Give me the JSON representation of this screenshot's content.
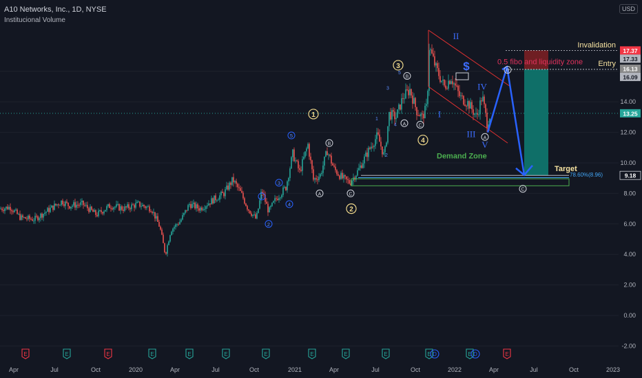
{
  "header": {
    "title": "A10 Networks, Inc., 1D, NYSE",
    "subtitle": "Institucional Volume",
    "currency": "USD"
  },
  "colors": {
    "background": "#131722",
    "up": "#26a69a",
    "down": "#ef5350",
    "wave_blue": "#2962ff",
    "wave_yellow": "#f0d98c",
    "channel_red": "#e03131",
    "demand_green": "#4caf50",
    "target_teal": "#0f6f68",
    "stop_red": "#7a1f24",
    "invalidation_box": "#f23645",
    "price_label": "#26a69a"
  },
  "chart_data": {
    "type": "candlestick",
    "y_ticks": [
      "-2.00",
      "0.00",
      "2.00",
      "4.00",
      "6.00",
      "8.00",
      "10.00",
      "12.00",
      "14.00",
      "16.00"
    ],
    "x_ticks": [
      "Apr",
      "Jul",
      "Oct",
      "2020",
      "Apr",
      "Jul",
      "Oct",
      "2021",
      "Apr",
      "Jul",
      "Oct",
      "2022",
      "Apr",
      "Jul",
      "Oct",
      "2023"
    ],
    "ylim": [
      -2.5,
      19
    ],
    "price_path": [
      {
        "t": 0,
        "p": 7.0
      },
      {
        "t": 15,
        "p": 7.1
      },
      {
        "t": 30,
        "p": 6.4
      },
      {
        "t": 50,
        "p": 6.3
      },
      {
        "t": 70,
        "p": 6.9
      },
      {
        "t": 90,
        "p": 7.5
      },
      {
        "t": 100,
        "p": 7.2
      },
      {
        "t": 120,
        "p": 7.3
      },
      {
        "t": 140,
        "p": 6.6
      },
      {
        "t": 160,
        "p": 7.2
      },
      {
        "t": 180,
        "p": 7.0
      },
      {
        "t": 200,
        "p": 7.3
      },
      {
        "t": 220,
        "p": 7.0
      },
      {
        "t": 232,
        "p": 5.8
      },
      {
        "t": 240,
        "p": 4.0
      },
      {
        "t": 248,
        "p": 5.6
      },
      {
        "t": 262,
        "p": 6.2
      },
      {
        "t": 275,
        "p": 7.3
      },
      {
        "t": 290,
        "p": 7.0
      },
      {
        "t": 310,
        "p": 7.6
      },
      {
        "t": 325,
        "p": 8.0
      },
      {
        "t": 338,
        "p": 8.9
      },
      {
        "t": 350,
        "p": 8.0
      },
      {
        "t": 360,
        "p": 7.0
      },
      {
        "t": 372,
        "p": 6.3
      },
      {
        "t": 380,
        "p": 8.2
      },
      {
        "t": 390,
        "p": 6.8
      },
      {
        "t": 400,
        "p": 7.6
      },
      {
        "t": 415,
        "p": 8.4
      },
      {
        "t": 425,
        "p": 10.6
      },
      {
        "t": 435,
        "p": 9.4
      },
      {
        "t": 447,
        "p": 11.2
      },
      {
        "t": 455,
        "p": 8.9
      },
      {
        "t": 465,
        "p": 9.2
      },
      {
        "t": 475,
        "p": 10.8
      },
      {
        "t": 485,
        "p": 9.6
      },
      {
        "t": 497,
        "p": 9.0
      },
      {
        "t": 508,
        "p": 8.7
      },
      {
        "t": 520,
        "p": 9.5
      },
      {
        "t": 535,
        "p": 10.8
      },
      {
        "t": 548,
        "p": 11.8
      },
      {
        "t": 558,
        "p": 10.4
      },
      {
        "t": 565,
        "p": 13.2
      },
      {
        "t": 575,
        "p": 13.0
      },
      {
        "t": 585,
        "p": 14.3
      },
      {
        "t": 595,
        "p": 14.8
      },
      {
        "t": 605,
        "p": 13.4
      },
      {
        "t": 613,
        "p": 13.0
      },
      {
        "t": 620,
        "p": 13.7
      },
      {
        "t": 623,
        "p": 17.6
      },
      {
        "t": 633,
        "p": 16.2
      },
      {
        "t": 645,
        "p": 15.0
      },
      {
        "t": 655,
        "p": 15.6
      },
      {
        "t": 668,
        "p": 14.3
      },
      {
        "t": 680,
        "p": 13.9
      },
      {
        "t": 692,
        "p": 13.0
      },
      {
        "t": 700,
        "p": 14.4
      },
      {
        "t": 707,
        "p": 12.6
      },
      {
        "t": 712,
        "p": 13.2
      }
    ],
    "price_levels": [
      {
        "value": 17.37,
        "label": "17.37"
      },
      {
        "value": 17.33,
        "label": "17.33"
      },
      {
        "value": 16.13,
        "label": "16.13"
      },
      {
        "value": 16.09,
        "label": "16.09"
      },
      {
        "value": 13.25,
        "label": "13.25"
      },
      {
        "value": 9.18,
        "label": "9.18"
      }
    ],
    "annotations": {
      "invalidation": "Invalidation",
      "entry": "Entry",
      "fibo_zone": "0.5 fibo and liquidity zone",
      "demand_zone": "Demand Zone",
      "target": "Target",
      "fib_level": "78.60%(8.96)",
      "dollar": "$"
    },
    "wave_labels_yellow": [
      {
        "text": "1",
        "t": 455,
        "p": 13.2
      },
      {
        "text": "2",
        "t": 510,
        "p": 7.0
      },
      {
        "text": "3",
        "t": 578,
        "p": 16.4
      },
      {
        "text": "4",
        "t": 614,
        "p": 11.5
      }
    ],
    "wave_labels_circled_blue": [
      {
        "text": "1",
        "t": 380,
        "p": 7.8
      },
      {
        "text": "2",
        "t": 390,
        "p": 6.0
      },
      {
        "text": "3",
        "t": 405,
        "p": 8.7
      },
      {
        "text": "4",
        "t": 420,
        "p": 7.3
      },
      {
        "text": "5",
        "t": 423,
        "p": 11.8
      }
    ],
    "wave_labels_circled_white": [
      {
        "text": "A",
        "t": 464,
        "p": 8.0
      },
      {
        "text": "B",
        "t": 478,
        "p": 11.3
      },
      {
        "text": "C",
        "t": 509,
        "p": 8.0
      },
      {
        "text": "A",
        "t": 587,
        "p": 12.6
      },
      {
        "text": "B",
        "t": 591,
        "p": 15.7
      },
      {
        "text": "C",
        "t": 610,
        "p": 12.5
      },
      {
        "text": "A",
        "t": 704,
        "p": 11.7
      },
      {
        "text": "B",
        "t": 737,
        "p": 16.1
      },
      {
        "text": "C",
        "t": 759,
        "p": 8.3
      }
    ],
    "wave_labels_small_blue": [
      {
        "text": "1",
        "t": 547,
        "p": 12.8
      },
      {
        "text": "2",
        "t": 561,
        "p": 10.4
      },
      {
        "text": "3",
        "t": 563,
        "p": 14.8
      },
      {
        "text": "4",
        "t": 574,
        "p": 12.4
      },
      {
        "text": "5",
        "t": 580,
        "p": 15.8
      }
    ],
    "wave_labels_roman": [
      {
        "text": "I",
        "t": 638,
        "p": 13.0
      },
      {
        "text": "II",
        "t": 662,
        "p": 18.1
      },
      {
        "text": "III",
        "t": 684,
        "p": 11.7
      },
      {
        "text": "IV",
        "t": 700,
        "p": 14.8
      },
      {
        "text": "V",
        "t": 704,
        "p": 11.0
      }
    ],
    "projection_path": [
      {
        "t": 708,
        "p": 12.0
      },
      {
        "t": 736,
        "p": 16.3
      },
      {
        "t": 761,
        "p": 9.2
      }
    ],
    "event_markers": [
      {
        "t": 37,
        "kind": "E",
        "color": "#f23645"
      },
      {
        "t": 97,
        "kind": "E",
        "color": "#26a69a"
      },
      {
        "t": 157,
        "kind": "E",
        "color": "#f23645"
      },
      {
        "t": 221,
        "kind": "E",
        "color": "#26a69a"
      },
      {
        "t": 275,
        "kind": "E",
        "color": "#26a69a"
      },
      {
        "t": 328,
        "kind": "E",
        "color": "#26a69a"
      },
      {
        "t": 386,
        "kind": "E",
        "color": "#26a69a"
      },
      {
        "t": 453,
        "kind": "E",
        "color": "#26a69a"
      },
      {
        "t": 502,
        "kind": "E",
        "color": "#26a69a"
      },
      {
        "t": 560,
        "kind": "E",
        "color": "#26a69a"
      },
      {
        "t": 623,
        "kind": "E",
        "color": "#26a69a"
      },
      {
        "t": 631,
        "kind": "D",
        "color": "#2962ff"
      },
      {
        "t": 682,
        "kind": "E",
        "color": "#26a69a"
      },
      {
        "t": 690,
        "kind": "D",
        "color": "#2962ff"
      },
      {
        "t": 736,
        "kind": "E",
        "color": "#f23645"
      }
    ]
  }
}
